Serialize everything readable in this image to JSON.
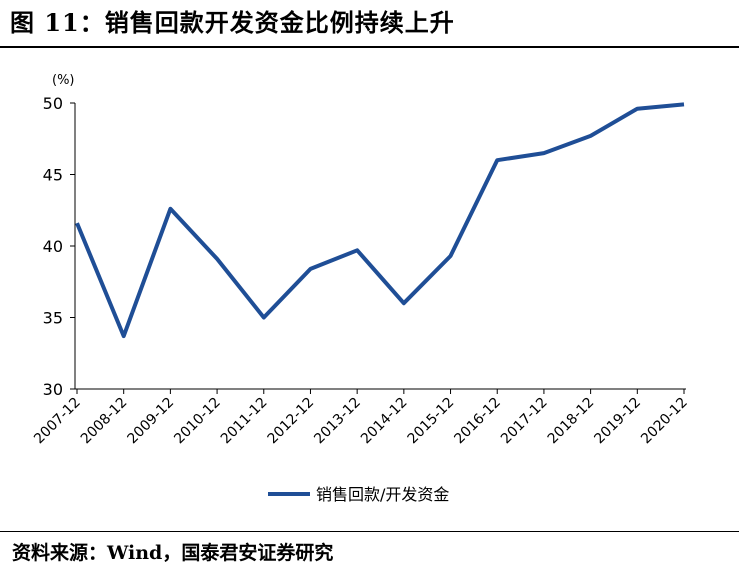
{
  "figure": {
    "title": "图 11：销售回款开发资金比例持续上升",
    "source": "资料来源：Wind，国泰君安证券研究"
  },
  "chart_data": {
    "type": "line",
    "unit": "(%)",
    "categories": [
      "2007-12",
      "2008-12",
      "2009-12",
      "2010-12",
      "2011-12",
      "2012-12",
      "2013-12",
      "2014-12",
      "2015-12",
      "2016-12",
      "2017-12",
      "2018-12",
      "2019-12",
      "2020-12"
    ],
    "series": [
      {
        "name": "销售回款/开发资金",
        "color": "#1f4e96",
        "values": [
          41.6,
          33.7,
          42.6,
          39.1,
          35.0,
          38.4,
          39.7,
          36.0,
          39.3,
          46.0,
          46.5,
          47.7,
          49.6,
          49.9
        ]
      }
    ],
    "yticks": [
      30,
      35,
      40,
      45,
      50
    ],
    "ylim": [
      30,
      50
    ],
    "grid": false,
    "legend_position": "bottom"
  }
}
